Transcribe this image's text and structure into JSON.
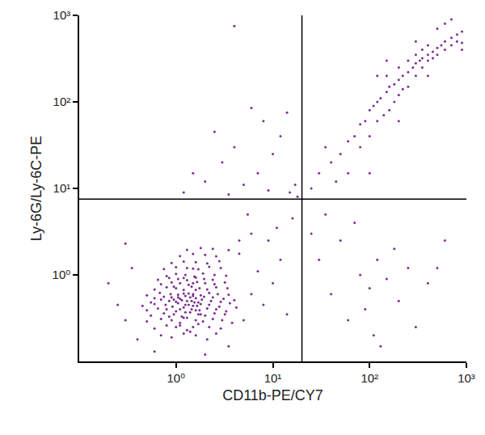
{
  "chart_data": {
    "type": "scatter",
    "log": true,
    "grid": false,
    "marker": "dot",
    "color": "#7a2e8e",
    "x_label": "CD11b-PE/CY7",
    "y_label": "Ly-6G/Ly-6C-PE",
    "xlim": [
      0.1,
      1000
    ],
    "ylim": [
      0.1,
      1000
    ],
    "xticks": [
      {
        "value": 1,
        "label": "10⁰"
      },
      {
        "value": 10,
        "label": "10¹"
      },
      {
        "value": 100,
        "label": "10²"
      },
      {
        "value": 1000,
        "label": "10³"
      }
    ],
    "yticks": [
      {
        "value": 1,
        "label": "10⁰"
      },
      {
        "value": 10,
        "label": "10¹"
      },
      {
        "value": 100,
        "label": "10²"
      },
      {
        "value": 1000,
        "label": "10³"
      }
    ],
    "gates": {
      "x": 20,
      "y": 7.5,
      "color": "#000000"
    },
    "x": [
      0.9,
      1.2,
      1.6,
      2.1,
      1.4,
      0.7,
      2.6,
      0.6,
      0.8,
      1.0,
      1.3,
      1.7,
      2.2,
      2.9,
      1.1,
      1.5,
      0.5,
      0.7,
      0.9,
      1.1,
      1.3,
      1.6,
      1.9,
      2.4,
      3.0,
      3.8,
      1.2,
      0.55,
      0.75,
      0.95,
      1.15,
      1.4,
      1.7,
      2.0,
      2.5,
      3.2,
      0.85,
      1.25,
      1.8,
      0.5,
      0.65,
      0.8,
      1.0,
      1.2,
      1.45,
      1.75,
      2.1,
      2.6,
      3.3,
      4.2,
      1.1,
      1.6,
      0.45,
      0.6,
      0.78,
      0.92,
      1.05,
      1.25,
      1.5,
      1.8,
      2.2,
      2.8,
      3.6,
      1.35,
      1.65,
      0.55,
      0.7,
      0.85,
      1.0,
      1.15,
      1.3,
      1.55,
      1.85,
      2.3,
      2.9,
      4.0,
      1.45,
      1.7,
      0.95,
      0.6,
      0.75,
      0.9,
      1.1,
      1.25,
      1.4,
      1.6,
      1.95,
      2.4,
      3.1,
      1.5,
      1.05,
      0.5,
      0.68,
      0.88,
      1.05,
      1.2,
      1.5,
      1.8,
      2.2,
      2.7,
      3.5,
      1.35,
      0.6,
      0.8,
      1.0,
      1.2,
      1.45,
      1.75,
      2.1,
      2.6,
      3.4,
      1.6,
      0.95,
      0.7,
      0.9,
      1.1,
      1.35,
      1.65,
      2.0,
      2.5,
      3.2,
      1.5,
      0.65,
      0.85,
      1.05,
      1.3,
      1.6,
      1.95,
      2.4,
      1.2,
      0.8,
      1.0,
      1.25,
      1.55,
      1.9,
      2.5,
      3.3,
      0.75,
      1.0,
      1.3,
      1.7,
      2.2,
      2.9,
      1.5,
      0.9,
      1.2,
      1.6,
      2.1,
      2.8,
      1.1,
      1.5,
      2.0,
      2.6,
      4.5,
      1.3,
      1.8,
      2.4,
      3.5,
      0.2,
      0.25,
      0.3,
      0.35,
      0.4,
      0.3,
      5,
      6,
      7,
      8,
      10,
      12,
      9,
      14,
      6,
      4.5,
      3.5,
      0.6,
      2,
      16,
      11,
      5.5,
      1.2,
      2,
      3,
      4,
      2.5,
      5,
      7,
      10,
      15,
      12,
      8,
      3.5,
      18,
      17,
      6,
      9,
      1.5,
      4,
      14,
      25,
      30,
      40,
      60,
      80,
      100,
      120,
      150,
      200,
      250,
      300,
      90,
      110,
      180,
      70,
      50,
      400,
      500,
      35,
      600,
      130,
      25,
      30,
      40,
      50,
      60,
      70,
      80,
      90,
      100,
      110,
      120,
      130,
      150,
      160,
      180,
      200,
      220,
      250,
      280,
      300,
      330,
      350,
      400,
      450,
      500,
      550,
      600,
      700,
      800,
      900,
      150,
      200,
      250,
      300,
      350,
      400,
      250,
      300,
      350,
      400,
      450,
      500,
      600,
      700,
      800,
      900,
      120,
      100,
      80,
      200,
      180,
      160,
      220,
      140,
      60,
      45,
      35,
      100,
      500,
      600,
      300,
      150,
      700,
      900,
      400,
      200,
      120
    ],
    "values": [
      0.19,
      0.21,
      0.2,
      0.18,
      0.22,
      0.2,
      0.21,
      0.24,
      0.26,
      0.25,
      0.23,
      0.27,
      0.25,
      0.24,
      0.26,
      0.25,
      0.29,
      0.31,
      0.3,
      0.28,
      0.32,
      0.3,
      0.29,
      0.31,
      0.3,
      0.28,
      0.32,
      0.34,
      0.36,
      0.35,
      0.33,
      0.37,
      0.35,
      0.34,
      0.36,
      0.35,
      0.33,
      0.37,
      0.35,
      0.39,
      0.41,
      0.4,
      0.38,
      0.42,
      0.4,
      0.39,
      0.41,
      0.4,
      0.38,
      0.42,
      0.4,
      0.39,
      0.44,
      0.46,
      0.45,
      0.43,
      0.47,
      0.45,
      0.44,
      0.46,
      0.45,
      0.43,
      0.47,
      0.45,
      0.44,
      0.48,
      0.52,
      0.5,
      0.49,
      0.51,
      0.5,
      0.48,
      0.52,
      0.5,
      0.49,
      0.51,
      0.5,
      0.48,
      0.52,
      0.54,
      0.56,
      0.55,
      0.53,
      0.57,
      0.55,
      0.54,
      0.56,
      0.55,
      0.53,
      0.57,
      0.55,
      0.58,
      0.62,
      0.6,
      0.59,
      0.61,
      0.6,
      0.58,
      0.62,
      0.6,
      0.59,
      0.61,
      0.68,
      0.72,
      0.7,
      0.67,
      0.73,
      0.7,
      0.68,
      0.72,
      0.7,
      0.67,
      0.73,
      0.78,
      0.82,
      0.8,
      0.77,
      0.83,
      0.8,
      0.78,
      0.82,
      0.8,
      0.88,
      0.92,
      0.9,
      0.87,
      0.93,
      0.9,
      0.88,
      0.92,
      0.97,
      1.03,
      1.0,
      0.96,
      1.04,
      1.0,
      0.98,
      1.17,
      1.23,
      1.2,
      1.16,
      1.24,
      1.2,
      1.18,
      1.37,
      1.43,
      1.4,
      1.36,
      1.44,
      1.65,
      1.75,
      1.7,
      1.64,
      1.76,
      1.95,
      2.05,
      2.0,
      1.94,
      0.8,
      0.45,
      0.3,
      1.2,
      0.18,
      2.3,
      0.3,
      0.6,
      1.1,
      0.45,
      0.8,
      1.5,
      2.5,
      0.35,
      3,
      2.5,
      0.15,
      0.13,
      0.12,
      4.5,
      3.5,
      5,
      9,
      12,
      20,
      30,
      45,
      11,
      15,
      25,
      9,
      40,
      60,
      8.5,
      8,
      11,
      85,
      9.5,
      15,
      750,
      75,
      3,
      1.5,
      0.6,
      0.3,
      1.0,
      0.7,
      1.5,
      0.9,
      0.5,
      1.2,
      0.25,
      0.4,
      0.2,
      2.0,
      4,
      2.5,
      0.8,
      1.2,
      5,
      2.5,
      0.15,
      10,
      15,
      20,
      25,
      35,
      40,
      55,
      60,
      80,
      90,
      100,
      110,
      130,
      150,
      160,
      180,
      200,
      220,
      250,
      280,
      300,
      320,
      350,
      380,
      420,
      450,
      500,
      550,
      600,
      650,
      200,
      250,
      300,
      350,
      400,
      450,
      150,
      200,
      250,
      300,
      320,
      350,
      400,
      450,
      500,
      480,
      60,
      40,
      30,
      120,
      100,
      80,
      140,
      70,
      15,
      12,
      30,
      15,
      700,
      800,
      500,
      300,
      900,
      400,
      200,
      60,
      200
    ]
  }
}
